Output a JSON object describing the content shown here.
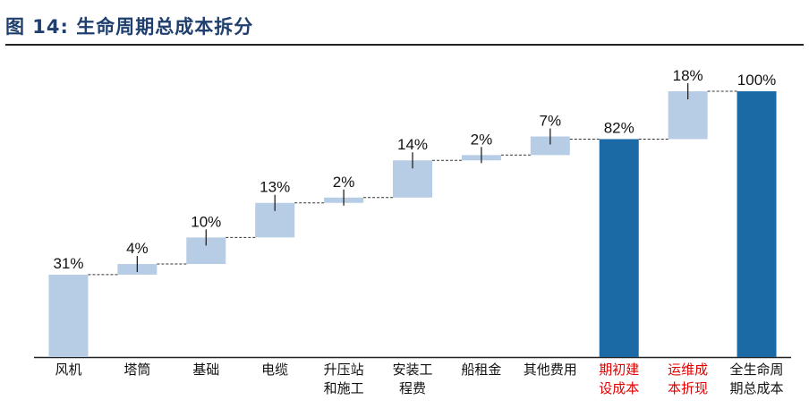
{
  "figure": {
    "title": "图 14: 生命周期总成本拆分"
  },
  "chart_data": {
    "type": "bar",
    "subtype": "waterfall",
    "ylim": [
      0,
      100
    ],
    "grid": false,
    "legend": "none",
    "colors": {
      "component": "#b7cde5",
      "total": "#1c6aa5",
      "tick": "#222222",
      "connector": "#333333",
      "axis": "#222222",
      "label_default": "#111111",
      "label_highlight": "#e00000"
    },
    "categories": [
      [
        "风机"
      ],
      [
        "塔筒"
      ],
      [
        "基础"
      ],
      [
        "电缆"
      ],
      [
        "升压站",
        "和施工"
      ],
      [
        "安装工",
        "程费"
      ],
      [
        "船租金"
      ],
      [
        "其他费用"
      ],
      [
        "期初建",
        "设成本"
      ],
      [
        "运维成",
        "本折现"
      ],
      [
        "全生命周",
        "期总成本"
      ]
    ],
    "values": [
      31,
      4,
      10,
      13,
      2,
      14,
      2,
      7,
      82,
      18,
      100
    ],
    "value_labels": [
      "31%",
      "4%",
      "10%",
      "13%",
      "2%",
      "14%",
      "2%",
      "7%",
      "82%",
      "18%",
      "100%"
    ],
    "kinds": [
      "step",
      "step",
      "step",
      "step",
      "step",
      "step",
      "step",
      "step",
      "total",
      "step",
      "total"
    ],
    "highlighted_categories": [
      8,
      9
    ]
  }
}
